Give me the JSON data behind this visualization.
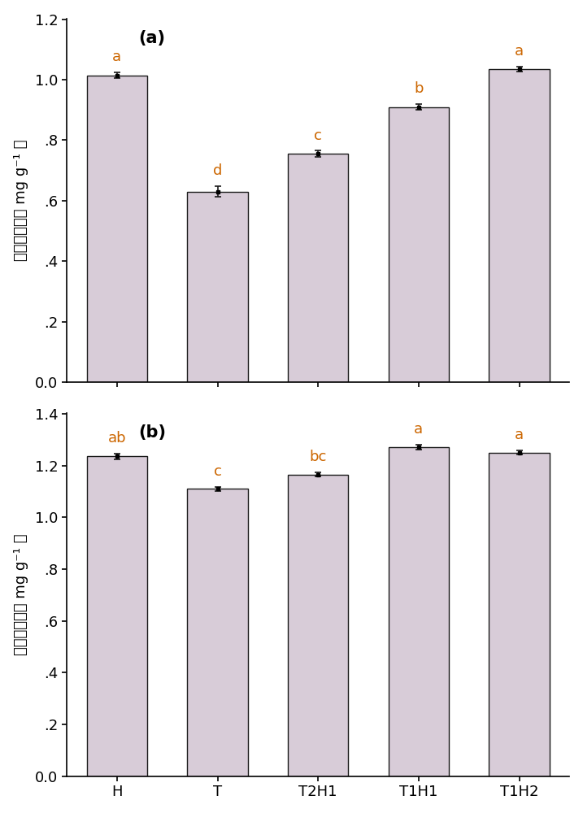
{
  "categories": [
    "H",
    "T",
    "T2H1",
    "T1H1",
    "T1H2"
  ],
  "chart_a": {
    "values": [
      1.015,
      0.63,
      0.755,
      0.91,
      1.035
    ],
    "errors": [
      0.01,
      0.018,
      0.01,
      0.01,
      0.008
    ],
    "labels": [
      "a",
      "d",
      "c",
      "b",
      "a"
    ],
    "ylim": [
      0.0,
      1.2
    ],
    "yticks": [
      0.0,
      0.2,
      0.4,
      0.6,
      0.8,
      1.0,
      1.2
    ],
    "yticklabels": [
      "0.0",
      ".2",
      ".4",
      ".6",
      ".8",
      "1.0",
      "1.2"
    ],
    "panel_label": "(a)"
  },
  "chart_b": {
    "values": [
      1.235,
      1.11,
      1.165,
      1.27,
      1.25
    ],
    "errors": [
      0.01,
      0.008,
      0.008,
      0.01,
      0.008
    ],
    "labels": [
      "ab",
      "c",
      "bc",
      "a",
      "a"
    ],
    "ylim": [
      0.0,
      1.4
    ],
    "yticks": [
      0.0,
      0.2,
      0.4,
      0.6,
      0.8,
      1.0,
      1.2,
      1.4
    ],
    "yticklabels": [
      "0.0",
      ".2",
      ".4",
      ".6",
      ".8",
      "1.0",
      "1.2",
      "1.4"
    ],
    "panel_label": "(b)"
  },
  "bar_color": "#d8ccd8",
  "bar_edgecolor": "#1a1a1a",
  "bar_width": 0.6,
  "error_color": "#1a1a1a",
  "label_color": "#cc6600",
  "tick_label_fontsize": 13,
  "axis_label_fontsize": 13,
  "panel_label_fontsize": 15,
  "stat_label_fontsize": 13,
  "ylabel_line1": "叶绻素含量",
  "ylabel_line2": "（ mg g⁻¹ ）"
}
